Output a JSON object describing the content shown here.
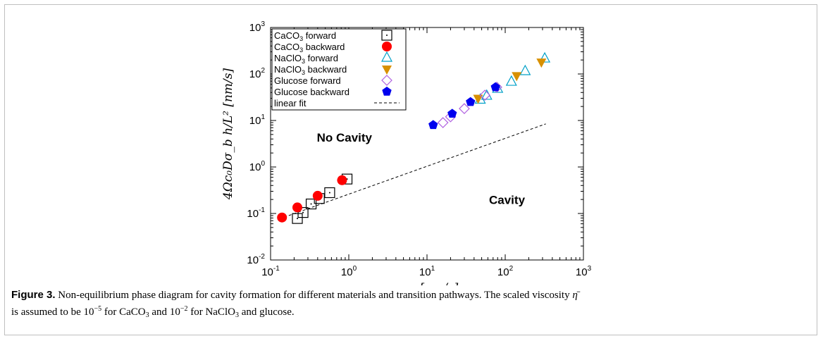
{
  "chart_data": {
    "type": "scatter",
    "xscale": "log",
    "yscale": "log",
    "xlim": [
      0.1,
      1000
    ],
    "ylim": [
      0.01,
      1000
    ],
    "grid": false,
    "legend_position": "top-left",
    "xlabel": "u_z [nm/s]",
    "ylabel": "4Ωc₀Dσ_b h/L² [nm/s]",
    "x_ticks": [
      {
        "base": "10",
        "exp": "-1"
      },
      {
        "base": "10",
        "exp": "0"
      },
      {
        "base": "10",
        "exp": "1"
      },
      {
        "base": "10",
        "exp": "2"
      },
      {
        "base": "10",
        "exp": "3"
      }
    ],
    "y_ticks": [
      {
        "base": "10",
        "exp": "-2"
      },
      {
        "base": "10",
        "exp": "-1"
      },
      {
        "base": "10",
        "exp": "0"
      },
      {
        "base": "10",
        "exp": "1"
      },
      {
        "base": "10",
        "exp": "2"
      },
      {
        "base": "10",
        "exp": "3"
      }
    ],
    "annotations": [
      {
        "text": "No Cavity",
        "x": 1.1,
        "y": 3.5
      },
      {
        "text": "Cavity",
        "x": 22,
        "y": 0.16
      }
    ],
    "fit": {
      "name": "linear fit",
      "x": [
        0.13,
        330
      ],
      "slope": 0.6
    }
  },
  "series": [
    {
      "name": "CaCO",
      "sub": "3",
      "suffix": " forward",
      "marker": "square-dot",
      "color": "#000000",
      "x": [
        0.22,
        0.26,
        0.33,
        0.42,
        0.57,
        0.95
      ],
      "y": [
        0.078,
        0.105,
        0.16,
        0.21,
        0.28,
        0.55
      ]
    },
    {
      "name": "CaCO",
      "sub": "3",
      "suffix": " backward",
      "marker": "circle",
      "color": "#ff0000",
      "x": [
        0.14,
        0.22,
        0.4,
        0.82
      ],
      "y": [
        0.082,
        0.135,
        0.24,
        0.52
      ]
    },
    {
      "name": "NaClO",
      "sub": "3",
      "suffix": " forward",
      "marker": "triangle-up-open",
      "color": "#00a0c8",
      "x": [
        48,
        58,
        80,
        120,
        180,
        320
      ],
      "y": [
        28,
        34,
        48,
        68,
        115,
        215
      ]
    },
    {
      "name": "NaClO",
      "sub": "3",
      "suffix": " backward",
      "marker": "triangle-down",
      "color": "#d89000",
      "x": [
        45,
        140,
        290
      ],
      "y": [
        30,
        92,
        180
      ]
    },
    {
      "name": "Glucose",
      "sub": "",
      "suffix": " forward",
      "marker": "diamond-open",
      "color": "#b060e0",
      "x": [
        16,
        20,
        30,
        55,
        78
      ],
      "y": [
        9,
        12,
        18,
        35,
        52
      ]
    },
    {
      "name": "Glucose",
      "sub": "",
      "suffix": " backward",
      "marker": "pentagon",
      "color": "#0000ee",
      "x": [
        12,
        21,
        36,
        75
      ],
      "y": [
        8,
        14,
        25,
        52
      ]
    },
    {
      "name": "linear fit",
      "sub": "",
      "suffix": "",
      "marker": "dashed-line",
      "color": "#000000",
      "x": [],
      "y": []
    }
  ],
  "caption": {
    "label": "Figure 3.",
    "t1": " Non-equilibrium phase diagram for cavity formation for different materials and transition pathways. The scaled viscosity ",
    "eta": "η̄",
    "t2": "is assumed to be ",
    "b1": "10",
    "e1": "−5",
    "t3": " for CaCO",
    "s1": "3",
    "t4": " and ",
    "b2": "10",
    "e2": "−2",
    "t5": " for NaClO",
    "s2": "3",
    "t6": " and glucose."
  }
}
